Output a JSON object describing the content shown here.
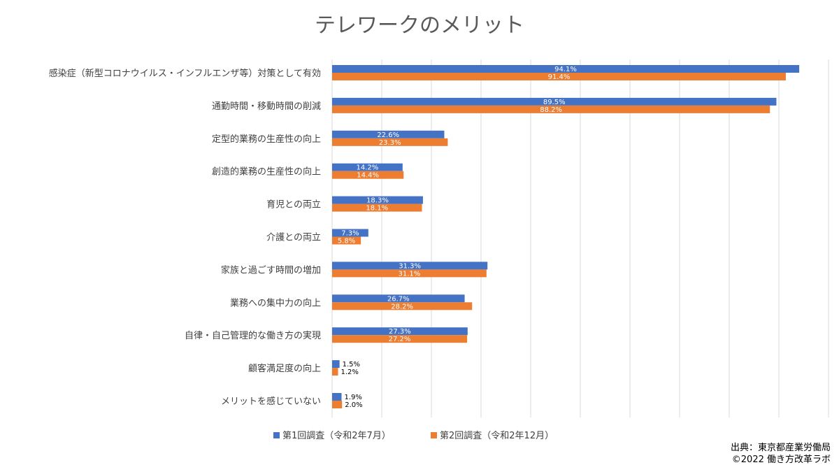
{
  "chart_data": {
    "type": "bar",
    "orientation": "horizontal",
    "title": "テレワークのメリット",
    "categories": [
      "感染症（新型コロナウイルス・インフルエンザ等）対策として有効",
      "通勤時間・移動時間の削減",
      "定型的業務の生産性の向上",
      "創造的業務の生産性の向上",
      "育児との両立",
      "介護との両立",
      "家族と過ごす時間の増加",
      "業務への集中力の向上",
      "自律・自己管理的な働き方の実現",
      "顧客満足度の向上",
      "メリットを感じていない"
    ],
    "series": [
      {
        "name": "第1回調査（令和2年7月）",
        "color": "#4472C4",
        "values": [
          94.1,
          89.5,
          22.6,
          14.2,
          18.3,
          7.3,
          31.3,
          26.7,
          27.3,
          1.5,
          1.9
        ]
      },
      {
        "name": "第2回調査（令和2年12月）",
        "color": "#ED7D31",
        "values": [
          91.4,
          88.2,
          23.3,
          14.4,
          18.1,
          5.8,
          31.1,
          28.2,
          27.2,
          1.2,
          2.0
        ]
      }
    ],
    "value_suffix": "%",
    "xlim": [
      0,
      100
    ],
    "grid": "vertical gridlines every 10",
    "legend": "bottom"
  },
  "source": {
    "line1": "出典：東京都産業労働局",
    "line2": "©2022 働き方改革ラボ"
  }
}
